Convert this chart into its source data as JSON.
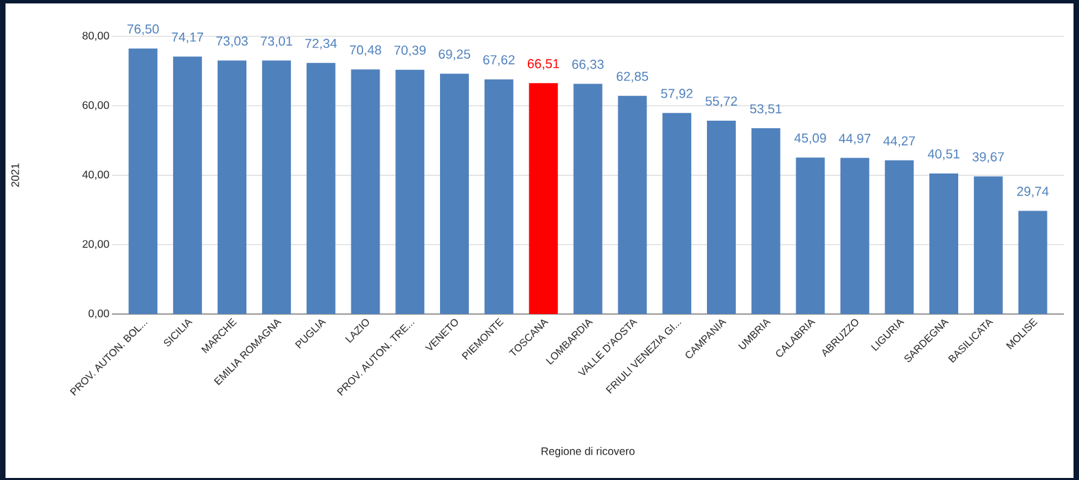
{
  "chart_data": {
    "type": "bar",
    "xlabel": "Regione di ricovero",
    "ylabel": "2021",
    "categories": [
      "PROV. AUTON. BOL...",
      "SICILIA",
      "MARCHE",
      "EMILIA ROMAGNA",
      "PUGLIA",
      "LAZIO",
      "PROV. AUTON. TRE...",
      "VENETO",
      "PIEMONTE",
      "TOSCANA",
      "LOMBARDIA",
      "VALLE D'AOSTA",
      "FRIULI VENEZIA GI...",
      "CAMPANIA",
      "UMBRIA",
      "CALABRIA",
      "ABRUZZO",
      "LIGURIA",
      "SARDEGNA",
      "BASILICATA",
      "MOLISE"
    ],
    "values": [
      76.5,
      74.17,
      73.03,
      73.01,
      72.34,
      70.48,
      70.39,
      69.25,
      67.62,
      66.51,
      66.33,
      62.85,
      57.92,
      55.72,
      53.51,
      45.09,
      44.97,
      44.27,
      40.51,
      39.67,
      29.74
    ],
    "value_labels": [
      "76,50",
      "74,17",
      "73,03",
      "73,01",
      "72,34",
      "70,48",
      "70,39",
      "69,25",
      "67,62",
      "66,51",
      "66,33",
      "62,85",
      "57,92",
      "55,72",
      "53,51",
      "45,09",
      "44,97",
      "44,27",
      "40,51",
      "39,67",
      "29,74"
    ],
    "colors": [
      "#4f81bd",
      "#4f81bd",
      "#4f81bd",
      "#4f81bd",
      "#4f81bd",
      "#4f81bd",
      "#4f81bd",
      "#4f81bd",
      "#4f81bd",
      "#ff0000",
      "#4f81bd",
      "#4f81bd",
      "#4f81bd",
      "#4f81bd",
      "#4f81bd",
      "#4f81bd",
      "#4f81bd",
      "#4f81bd",
      "#4f81bd",
      "#4f81bd",
      "#4f81bd"
    ],
    "ylim": [
      0,
      80
    ],
    "yticks": [
      {
        "value": 0,
        "label": "0,00"
      },
      {
        "value": 20,
        "label": "20,00"
      },
      {
        "value": 40,
        "label": "40,00"
      },
      {
        "value": 60,
        "label": "60,00"
      },
      {
        "value": 80,
        "label": "80,00"
      }
    ],
    "grid": "y"
  }
}
